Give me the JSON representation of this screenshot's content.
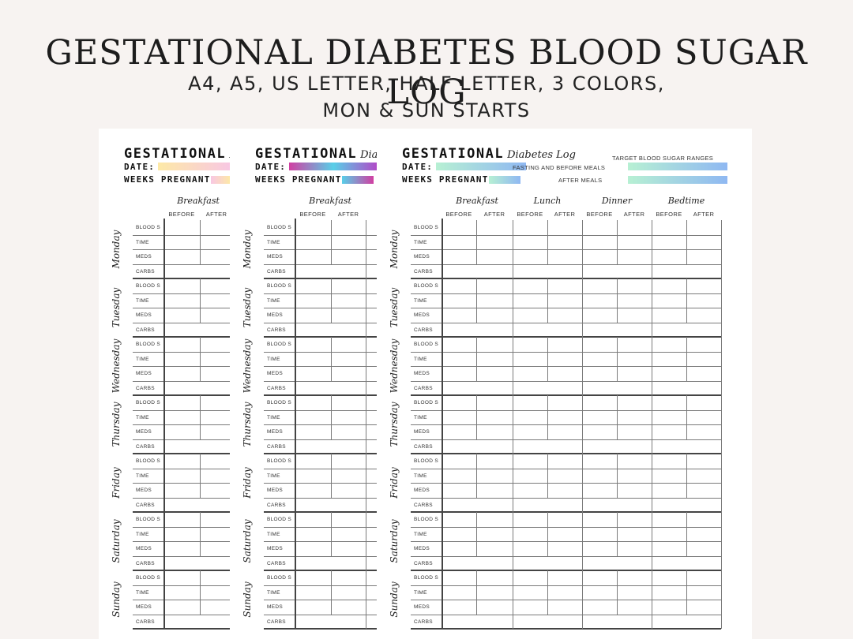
{
  "hero": {
    "title": "GESTATIONAL DIABETES BLOOD SUGAR LOG",
    "subtitle_line1": "A4, A5, US LETTER, HALF LETTER, 3 COLORS,",
    "subtitle_line2": "MON & SUN STARTS"
  },
  "log": {
    "title_bold": "GESTATIONAL",
    "title_script": "Diabetes Log",
    "date_label": "DATE:",
    "weeks_label": "WEEKS PREGNANT:",
    "meals": [
      "Breakfast",
      "Lunch",
      "Dinner",
      "Bedtime"
    ],
    "before_label": "BEFORE",
    "after_label": "AFTER",
    "days": [
      "Monday",
      "Tuesday",
      "Wednesday",
      "Thursday",
      "Friday",
      "Saturday",
      "Sunday"
    ],
    "row_labels": [
      "BLOOD S",
      "TIME",
      "MEDS",
      "CARBS"
    ],
    "target": {
      "title": "TARGET BLOOD  SUGAR RANGES",
      "fasting_label": "FASTING AND BEFORE MEALS",
      "after_label": "AFTER MEALS"
    }
  },
  "color_variants": [
    {
      "name": "pastel",
      "date_gradient": [
        "#fde9a6",
        "#f8c7e3"
      ],
      "weeks_gradient": [
        "#f8c7e3",
        "#fde9a6"
      ]
    },
    {
      "name": "vivid",
      "date_gradient": [
        "#d13fa2",
        "#58cfe8",
        "#b249c7"
      ],
      "weeks_gradient": [
        "#58cfe8",
        "#d13fa2"
      ]
    },
    {
      "name": "mint-blue",
      "date_gradient": [
        "#b7f0d3",
        "#8fb8f2"
      ],
      "weeks_gradient": [
        "#b7f0d3",
        "#8fb8f2"
      ]
    }
  ]
}
